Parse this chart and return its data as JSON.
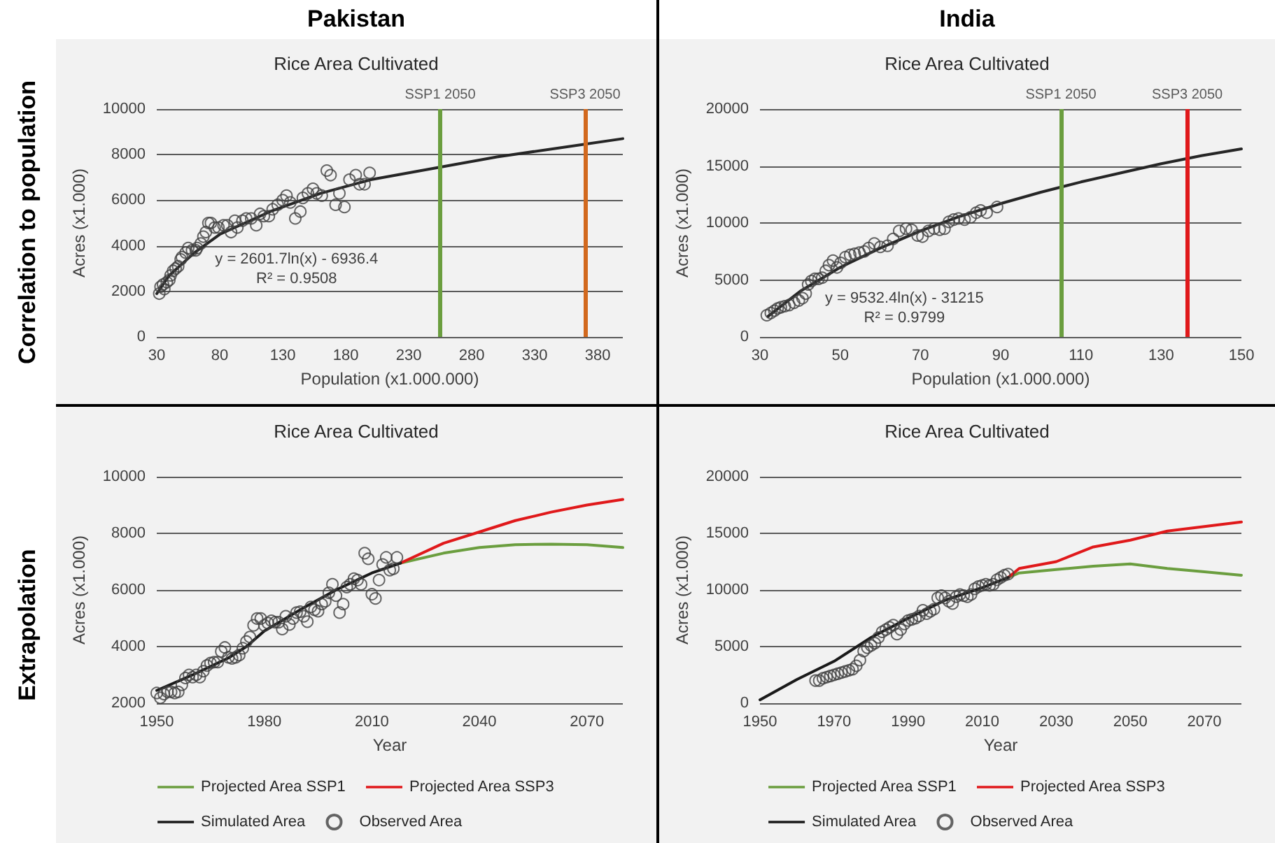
{
  "chart_data": [
    {
      "type": "scatter",
      "title": "Rice Area Cultivated",
      "xlabel": "Population (x1.000.000)",
      "ylabel": "Acres (x1.000)",
      "xlim": [
        30,
        400
      ],
      "xticks": [
        30,
        80,
        130,
        180,
        230,
        280,
        330,
        380
      ],
      "ylim": [
        0,
        10000
      ],
      "yticks": [
        0,
        2000,
        4000,
        6000,
        8000,
        10000
      ],
      "grid": "y",
      "annotations": [
        "Pakistan",
        "Correlation to population",
        "y = 2601.7ln(x) - 6936.4",
        "R² = 0.9508"
      ],
      "ref_lines": [
        {
          "axis": "x",
          "value": 255,
          "label": "SSP1 2050",
          "color": "#6b9e3f"
        },
        {
          "axis": "x",
          "value": 370,
          "label": "SSP3 2050",
          "color": "#d2691e"
        }
      ],
      "series": [
        {
          "marker": "circle",
          "color": "#404040",
          "x": [
            32,
            33,
            35,
            36,
            38,
            40,
            41,
            43,
            45,
            47,
            49,
            50,
            53,
            55,
            58,
            61,
            62,
            65,
            67,
            69,
            71,
            73,
            76,
            79,
            83,
            86,
            89,
            92,
            94,
            98,
            101,
            105,
            109,
            112,
            115,
            119,
            122,
            126,
            130,
            133,
            136,
            140,
            144,
            146,
            150,
            154,
            157,
            161,
            165,
            168,
            172,
            175,
            179,
            183,
            188,
            191,
            195,
            199
          ],
          "values": [
            1900,
            2200,
            2300,
            2100,
            2400,
            2500,
            2700,
            2900,
            3000,
            3100,
            3400,
            3500,
            3700,
            3900,
            3800,
            3800,
            3900,
            4100,
            4400,
            4600,
            5000,
            5000,
            4800,
            4800,
            4900,
            4900,
            4600,
            5100,
            4800,
            5100,
            5200,
            5200,
            4900,
            5400,
            5300,
            5300,
            5600,
            5800,
            6000,
            6200,
            5900,
            5200,
            5500,
            6100,
            6300,
            6500,
            6300,
            6200,
            7300,
            7100,
            5800,
            6300,
            5700,
            6900,
            7100,
            6700,
            6700,
            7200
          ]
        },
        {
          "type": "line",
          "color": "#262626",
          "x": [
            30,
            40,
            60,
            80,
            120,
            160,
            200,
            250,
            300,
            350,
            400
          ],
          "values": [
            1900,
            2700,
            3700,
            4500,
            5500,
            6300,
            6900,
            7400,
            7900,
            8300,
            8700
          ]
        }
      ]
    },
    {
      "type": "scatter",
      "title": "Rice Area Cultivated",
      "xlabel": "Population (x1.000.000)",
      "ylabel": "Acres (x1.000)",
      "xlim": [
        30,
        150
      ],
      "xticks": [
        30,
        50,
        70,
        90,
        110,
        130,
        150
      ],
      "ylim": [
        0,
        20000
      ],
      "yticks": [
        0,
        5000,
        10000,
        15000,
        20000
      ],
      "grid": "y",
      "annotations": [
        "India",
        "y = 9532.4ln(x) - 31215",
        "R² = 0.9799"
      ],
      "ref_lines": [
        {
          "axis": "x",
          "value": 105,
          "label": "SSP1 2050",
          "color": "#6b9e3f"
        },
        {
          "axis": "x",
          "value": 136.5,
          "label": "SSP3 2050",
          "color": "#e0191b"
        }
      ],
      "series": [
        {
          "marker": "circle",
          "color": "#404040",
          "x": [
            31.7,
            32.7,
            33.6,
            34.4,
            35.2,
            36.2,
            37.3,
            38.5,
            39.7,
            40.6,
            41.4,
            42,
            42.8,
            43.7,
            44.6,
            45.5,
            46.4,
            47.2,
            48.2,
            49.2,
            50.1,
            51.3,
            52.5,
            53.6,
            54.8,
            56,
            57.1,
            58.5,
            60,
            61.8,
            63.2,
            64.7,
            66.4,
            67.8,
            69.3,
            70.5,
            72,
            73.4,
            74.8,
            76,
            77.1,
            78.3,
            79.5,
            81,
            82.5,
            83.9,
            85,
            86.5,
            89.1
          ],
          "values": [
            1900,
            2100,
            2300,
            2500,
            2600,
            2700,
            2800,
            3000,
            3200,
            3400,
            3800,
            4600,
            4900,
            5100,
            5100,
            5200,
            5800,
            6300,
            6700,
            6100,
            6500,
            7000,
            7200,
            7300,
            7400,
            7500,
            7800,
            8200,
            7900,
            8000,
            8600,
            9300,
            9500,
            9400,
            8900,
            8800,
            9300,
            9500,
            9400,
            9500,
            10100,
            10300,
            10400,
            10300,
            10500,
            10900,
            11100,
            10900,
            11400
          ]
        },
        {
          "type": "line",
          "color": "#262626",
          "x": [
            32,
            40,
            50,
            60,
            70,
            80,
            90,
            100,
            110,
            120,
            130,
            140,
            150
          ],
          "values": [
            1800,
            4000,
            6100,
            7800,
            9300,
            10600,
            11700,
            12700,
            13600,
            14400,
            15200,
            15900,
            16500
          ]
        }
      ]
    },
    {
      "type": "line",
      "title": "Rice Area Cultivated",
      "xlabel": "Year",
      "ylabel": "Acres (x1.000)",
      "xlim": [
        1950,
        2080
      ],
      "xticks": [
        1950,
        1980,
        2010,
        2040,
        2070
      ],
      "ylim": [
        2000,
        10000
      ],
      "yticks": [
        2000,
        4000,
        6000,
        8000,
        10000
      ],
      "grid": "y",
      "legend": "bottom",
      "annotations": [
        "Extrapolation"
      ],
      "series": [
        {
          "name": "Projected Area SSP1",
          "color": "#6b9e3f",
          "x": [
            2018,
            2030,
            2040,
            2050,
            2060,
            2070,
            2080
          ],
          "values": [
            6950,
            7300,
            7500,
            7600,
            7620,
            7600,
            7500
          ]
        },
        {
          "name": "Projected Area SSP3",
          "color": "#e0191b",
          "x": [
            2018,
            2030,
            2040,
            2050,
            2060,
            2070,
            2080
          ],
          "values": [
            6950,
            7650,
            8050,
            8450,
            8750,
            9000,
            9200
          ]
        },
        {
          "name": "Simulated Area",
          "color": "#1a1a1a",
          "x": [
            1950,
            1960,
            1970,
            1975,
            1980,
            1990,
            2000,
            2010,
            2018
          ],
          "values": [
            2450,
            3000,
            3600,
            4000,
            4550,
            5300,
            6000,
            6600,
            6950
          ]
        },
        {
          "name": "Observed Area",
          "type": "scatter",
          "marker": "circle",
          "color": "#404040",
          "x": [
            1950,
            1951,
            1952,
            1953,
            1954,
            1955,
            1956,
            1957,
            1958,
            1959,
            1960,
            1961,
            1962,
            1963,
            1964,
            1965,
            1966,
            1967,
            1968,
            1969,
            1970,
            1971,
            1972,
            1973,
            1974,
            1975,
            1976,
            1977,
            1978,
            1979,
            1980,
            1981,
            1982,
            1983,
            1984,
            1985,
            1986,
            1987,
            1988,
            1989,
            1990,
            1991,
            1992,
            1993,
            1994,
            1995,
            1996,
            1997,
            1998,
            1999,
            2000,
            2001,
            2002,
            2003,
            2004,
            2005,
            2006,
            2007,
            2008,
            2009,
            2010,
            2011,
            2012,
            2013,
            2014,
            2015,
            2016,
            2017
          ],
          "values": [
            2360,
            2190,
            2320,
            2400,
            2400,
            2360,
            2400,
            2650,
            2890,
            3000,
            2920,
            3000,
            2920,
            3130,
            3330,
            3420,
            3450,
            3450,
            3830,
            3970,
            3620,
            3580,
            3620,
            3700,
            3940,
            4180,
            4340,
            4750,
            4990,
            4990,
            4750,
            4830,
            4910,
            4860,
            4860,
            4620,
            5070,
            4780,
            4990,
            5200,
            5230,
            5070,
            4880,
            5400,
            5300,
            5250,
            5500,
            5600,
            5900,
            6200,
            5800,
            5200,
            5500,
            6100,
            6200,
            6400,
            6350,
            6200,
            7300,
            7100,
            5850,
            5700,
            6350,
            6900,
            7150,
            6700,
            6750,
            7150
          ]
        }
      ]
    },
    {
      "type": "line",
      "title": "Rice Area Cultivated",
      "xlabel": "Year",
      "ylabel": "Acres (x1.000)",
      "xlim": [
        1950,
        2080
      ],
      "xticks": [
        1950,
        1970,
        1990,
        2010,
        2030,
        2050,
        2070
      ],
      "ylim": [
        0,
        20000
      ],
      "yticks": [
        0,
        5000,
        10000,
        15000,
        20000
      ],
      "grid": "y",
      "legend": "bottom",
      "series": [
        {
          "name": "Projected Area SSP1",
          "color": "#6b9e3f",
          "x": [
            2017,
            2020,
            2030,
            2040,
            2050,
            2060,
            2070,
            2080
          ],
          "values": [
            11100,
            11500,
            11800,
            12100,
            12300,
            11900,
            11600,
            11300
          ]
        },
        {
          "name": "Projected Area SSP3",
          "color": "#e0191b",
          "x": [
            2017,
            2020,
            2030,
            2040,
            2050,
            2060,
            2070,
            2080
          ],
          "values": [
            11100,
            11900,
            12500,
            13800,
            14400,
            15200,
            15600,
            16000
          ]
        },
        {
          "name": "Simulated Area",
          "color": "#1a1a1a",
          "x": [
            1950,
            1960,
            1970,
            1980,
            1990,
            2000,
            2010,
            2017
          ],
          "values": [
            300,
            2100,
            3700,
            5800,
            7500,
            9100,
            10200,
            11100
          ]
        },
        {
          "name": "Observed Area",
          "type": "scatter",
          "marker": "circle",
          "color": "#404040",
          "x": [
            1965,
            1966,
            1967,
            1968,
            1969,
            1970,
            1971,
            1972,
            1973,
            1974,
            1975,
            1976,
            1977,
            1978,
            1979,
            1980,
            1981,
            1982,
            1983,
            1984,
            1985,
            1986,
            1987,
            1988,
            1989,
            1990,
            1991,
            1992,
            1993,
            1994,
            1995,
            1996,
            1997,
            1998,
            1999,
            2000,
            2001,
            2002,
            2003,
            2004,
            2005,
            2006,
            2007,
            2008,
            2009,
            2010,
            2011,
            2012,
            2013,
            2014,
            2015,
            2016,
            2017
          ],
          "values": [
            2000,
            2000,
            2200,
            2300,
            2400,
            2500,
            2600,
            2700,
            2800,
            2900,
            3000,
            3300,
            3800,
            4600,
            4900,
            5100,
            5300,
            5800,
            6300,
            6500,
            6700,
            6900,
            6100,
            6500,
            7000,
            7300,
            7400,
            7500,
            7700,
            8200,
            7900,
            8100,
            8300,
            9300,
            9500,
            9300,
            9000,
            8800,
            9400,
            9600,
            9500,
            9400,
            9600,
            10100,
            10300,
            10400,
            10500,
            10400,
            10500,
            10900,
            11100,
            11300,
            11400
          ]
        }
      ]
    }
  ]
}
